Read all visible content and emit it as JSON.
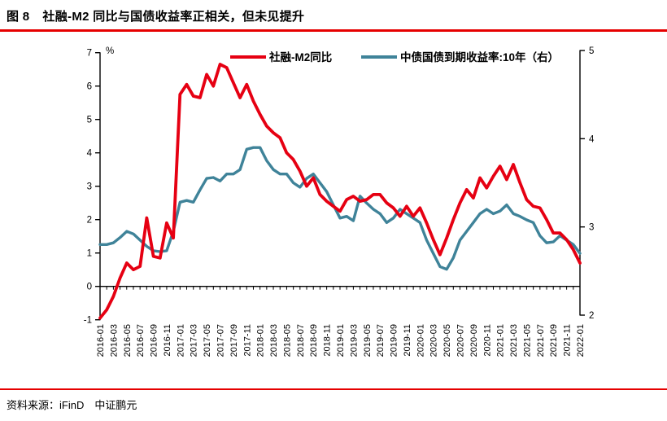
{
  "header": {
    "figure_label": "图 8",
    "figure_title": "社融-M2 同比与国债收益率正相关，但未见提升"
  },
  "footer": {
    "source_label": "资料来源：",
    "source_text": "iFinD　中证鹏元"
  },
  "colors": {
    "rule_red": "#e60000",
    "series_red": "#e60012",
    "series_blue": "#3f8399",
    "axis_black": "#000000"
  },
  "chart_data": {
    "type": "line",
    "title": "",
    "legend_position": "top",
    "left_axis": {
      "label": "%",
      "min": -1,
      "max": 7,
      "ticks": [
        -1,
        0,
        1,
        2,
        3,
        4,
        5,
        6,
        7
      ]
    },
    "right_axis": {
      "label": "",
      "min": 2,
      "max": 5,
      "ticks": [
        2,
        3,
        4,
        5
      ]
    },
    "x": [
      "2016-01",
      "2016-02",
      "2016-03",
      "2016-04",
      "2016-05",
      "2016-06",
      "2016-07",
      "2016-08",
      "2016-09",
      "2016-10",
      "2016-11",
      "2016-12",
      "2017-01",
      "2017-02",
      "2017-03",
      "2017-04",
      "2017-05",
      "2017-06",
      "2017-07",
      "2017-08",
      "2017-09",
      "2017-10",
      "2017-11",
      "2017-12",
      "2018-01",
      "2018-02",
      "2018-03",
      "2018-04",
      "2018-05",
      "2018-06",
      "2018-07",
      "2018-08",
      "2018-09",
      "2018-10",
      "2018-11",
      "2018-12",
      "2019-01",
      "2019-02",
      "2019-03",
      "2019-04",
      "2019-05",
      "2019-06",
      "2019-07",
      "2019-08",
      "2019-09",
      "2019-10",
      "2019-11",
      "2019-12",
      "2020-01",
      "2020-02",
      "2020-03",
      "2020-04",
      "2020-05",
      "2020-06",
      "2020-07",
      "2020-08",
      "2020-09",
      "2020-10",
      "2020-11",
      "2020-12",
      "2021-01",
      "2021-02",
      "2021-03",
      "2021-04",
      "2021-05",
      "2021-06",
      "2021-07",
      "2021-08",
      "2021-09",
      "2021-10",
      "2021-11",
      "2021-12",
      "2022-01"
    ],
    "x_tick_labels": [
      "2016-01",
      "2016-03",
      "2016-05",
      "2016-07",
      "2016-09",
      "2016-11",
      "2017-01",
      "2017-03",
      "2017-05",
      "2017-07",
      "2017-09",
      "2017-11",
      "2018-01",
      "2018-03",
      "2018-05",
      "2018-07",
      "2018-09",
      "2018-11",
      "2019-01",
      "2019-03",
      "2019-05",
      "2019-07",
      "2019-09",
      "2019-11",
      "2020-01",
      "2020-03",
      "2020-05",
      "2020-07",
      "2020-09",
      "2020-11",
      "2021-01",
      "2021-03",
      "2021-05",
      "2021-07",
      "2021-09",
      "2021-11",
      "2022-01"
    ],
    "series": [
      {
        "name": "社融-M2同比",
        "axis": "left",
        "color": "#e60012",
        "values": [
          -0.95,
          -0.7,
          -0.3,
          0.25,
          0.7,
          0.5,
          0.6,
          2.05,
          0.9,
          0.85,
          1.9,
          1.45,
          5.75,
          6.05,
          5.7,
          5.65,
          6.35,
          6.0,
          6.65,
          6.55,
          6.1,
          5.65,
          6.05,
          5.55,
          5.15,
          4.8,
          4.6,
          4.45,
          4.0,
          3.8,
          3.45,
          3.0,
          3.25,
          2.75,
          2.55,
          2.4,
          2.25,
          2.6,
          2.7,
          2.55,
          2.6,
          2.75,
          2.75,
          2.5,
          2.35,
          2.1,
          2.4,
          2.1,
          2.35,
          1.9,
          1.4,
          0.95,
          1.45,
          2.0,
          2.5,
          2.9,
          2.65,
          3.25,
          2.95,
          3.3,
          3.6,
          3.2,
          3.65,
          3.1,
          2.6,
          2.4,
          2.35,
          2.0,
          1.6,
          1.6,
          1.4,
          1.1,
          0.7
        ]
      },
      {
        "name": "中债国债到期收益率:10年（右）",
        "axis": "right",
        "color": "#3f8399",
        "values": [
          2.8,
          2.8,
          2.82,
          2.88,
          2.95,
          2.92,
          2.85,
          2.78,
          2.73,
          2.72,
          2.73,
          2.95,
          3.28,
          3.3,
          3.28,
          3.42,
          3.55,
          3.56,
          3.52,
          3.6,
          3.6,
          3.65,
          3.88,
          3.9,
          3.9,
          3.75,
          3.65,
          3.6,
          3.6,
          3.5,
          3.45,
          3.55,
          3.6,
          3.5,
          3.4,
          3.25,
          3.1,
          3.12,
          3.07,
          3.35,
          3.27,
          3.2,
          3.15,
          3.05,
          3.1,
          3.2,
          3.15,
          3.1,
          3.05,
          2.85,
          2.7,
          2.55,
          2.52,
          2.65,
          2.85,
          2.95,
          3.05,
          3.15,
          3.2,
          3.15,
          3.18,
          3.25,
          3.15,
          3.12,
          3.08,
          3.05,
          2.9,
          2.82,
          2.83,
          2.9,
          2.85,
          2.8,
          2.7
        ]
      }
    ]
  }
}
